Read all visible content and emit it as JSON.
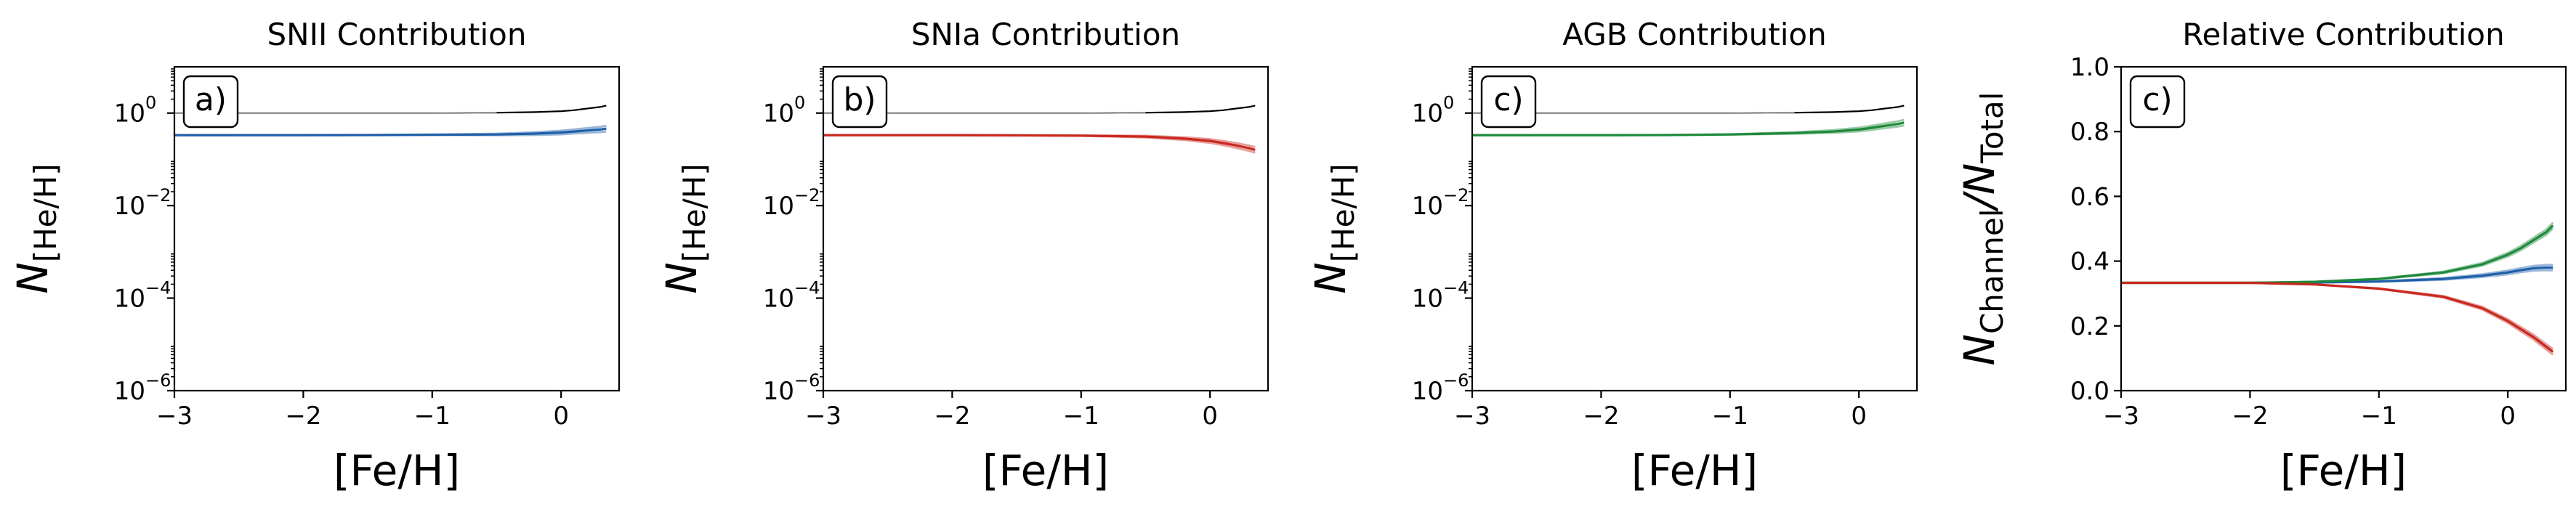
{
  "chart_data": [
    {
      "type": "line",
      "title": "SNII Contribution",
      "panel_label": "a)",
      "xlabel": "[Fe/H]",
      "ylabel": "N[He/H]",
      "yscale": "log",
      "xlim": [
        -3,
        0.45
      ],
      "ylim": [
        1e-06,
        10
      ],
      "xticks": [
        -3,
        -2,
        -1,
        0
      ],
      "xtick_labels": [
        "−3",
        "−2",
        "−1",
        "0"
      ],
      "yticks": [
        1e-06,
        0.0001,
        0.01,
        1
      ],
      "ytick_labels": [
        "10",
        "10",
        "10",
        "10"
      ],
      "ytick_exponents": [
        "−6",
        "−4",
        "−2",
        "0"
      ],
      "series": [
        {
          "color": "#000000",
          "x": [
            -3.0,
            -2.0,
            -1.0,
            -0.5,
            -0.2,
            0.0,
            0.1,
            0.2,
            0.3,
            0.35
          ],
          "y": [
            1.0,
            1.0,
            1.0,
            1.02,
            1.05,
            1.1,
            1.15,
            1.25,
            1.35,
            1.45
          ]
        },
        {
          "color": "#1f5fa8",
          "x": [
            -3.0,
            -2.0,
            -1.5,
            -1.0,
            -0.5,
            -0.2,
            0.0,
            0.1,
            0.2,
            0.3,
            0.35
          ],
          "y": [
            0.333,
            0.333,
            0.335,
            0.34,
            0.345,
            0.36,
            0.38,
            0.4,
            0.42,
            0.44,
            0.46
          ]
        }
      ]
    },
    {
      "type": "line",
      "title": "SNIa Contribution",
      "panel_label": "b)",
      "xlabel": "[Fe/H]",
      "ylabel": "N[He/H]",
      "yscale": "log",
      "xlim": [
        -3,
        0.45
      ],
      "ylim": [
        1e-06,
        10
      ],
      "xticks": [
        -3,
        -2,
        -1,
        0
      ],
      "xtick_labels": [
        "−3",
        "−2",
        "−1",
        "0"
      ],
      "yticks": [
        1e-06,
        0.0001,
        0.01,
        1
      ],
      "ytick_labels": [
        "10",
        "10",
        "10",
        "10"
      ],
      "ytick_exponents": [
        "−6",
        "−4",
        "−2",
        "0"
      ],
      "series": [
        {
          "color": "#000000",
          "x": [
            -3.0,
            -2.0,
            -1.0,
            -0.5,
            -0.2,
            0.0,
            0.1,
            0.2,
            0.3,
            0.35
          ],
          "y": [
            1.0,
            1.0,
            1.0,
            1.02,
            1.05,
            1.1,
            1.15,
            1.25,
            1.35,
            1.45
          ]
        },
        {
          "color": "#c8281e",
          "x": [
            -3.0,
            -2.0,
            -1.5,
            -1.0,
            -0.5,
            -0.2,
            0.0,
            0.1,
            0.2,
            0.3,
            0.35
          ],
          "y": [
            0.333,
            0.333,
            0.33,
            0.325,
            0.31,
            0.28,
            0.25,
            0.225,
            0.2,
            0.175,
            0.16
          ]
        }
      ]
    },
    {
      "type": "line",
      "title": "AGB Contribution",
      "panel_label": "c)",
      "xlabel": "[Fe/H]",
      "ylabel": "N[He/H]",
      "yscale": "log",
      "xlim": [
        -3,
        0.45
      ],
      "ylim": [
        1e-06,
        10
      ],
      "xticks": [
        -3,
        -2,
        -1,
        0
      ],
      "xtick_labels": [
        "−3",
        "−2",
        "−1",
        "0"
      ],
      "yticks": [
        1e-06,
        0.0001,
        0.01,
        1
      ],
      "ytick_labels": [
        "10",
        "10",
        "10",
        "10"
      ],
      "ytick_exponents": [
        "−6",
        "−4",
        "−2",
        "0"
      ],
      "series": [
        {
          "color": "#000000",
          "x": [
            -3.0,
            -2.0,
            -1.0,
            -0.5,
            -0.2,
            0.0,
            0.1,
            0.2,
            0.3,
            0.35
          ],
          "y": [
            1.0,
            1.0,
            1.0,
            1.02,
            1.05,
            1.1,
            1.15,
            1.25,
            1.35,
            1.45
          ]
        },
        {
          "color": "#1e8a3c",
          "x": [
            -3.0,
            -2.0,
            -1.5,
            -1.0,
            -0.5,
            -0.2,
            0.0,
            0.1,
            0.2,
            0.3,
            0.35
          ],
          "y": [
            0.333,
            0.333,
            0.335,
            0.345,
            0.37,
            0.4,
            0.44,
            0.48,
            0.53,
            0.58,
            0.62
          ]
        }
      ]
    },
    {
      "type": "line",
      "title": "Relative Contribution",
      "panel_label": "c)",
      "xlabel": "[Fe/H]",
      "ylabel": "NChannel/NTotal",
      "yscale": "linear",
      "xlim": [
        -3,
        0.45
      ],
      "ylim": [
        0,
        1
      ],
      "xticks": [
        -3,
        -2,
        -1,
        0
      ],
      "xtick_labels": [
        "−3",
        "−2",
        "−1",
        "0"
      ],
      "yticks": [
        0,
        0.2,
        0.4,
        0.6,
        0.8,
        1.0
      ],
      "ytick_labels": [
        "0.0",
        "0.2",
        "0.4",
        "0.6",
        "0.8",
        "1.0"
      ],
      "series": [
        {
          "color": "#1f5fa8",
          "x": [
            -3.0,
            -2.0,
            -1.5,
            -1.0,
            -0.5,
            -0.2,
            0.0,
            0.1,
            0.2,
            0.3,
            0.35
          ],
          "y": [
            0.333,
            0.333,
            0.334,
            0.337,
            0.345,
            0.355,
            0.365,
            0.372,
            0.378,
            0.38,
            0.38
          ]
        },
        {
          "color": "#1e8a3c",
          "x": [
            -3.0,
            -2.0,
            -1.5,
            -1.0,
            -0.5,
            -0.2,
            0.0,
            0.1,
            0.2,
            0.3,
            0.35
          ],
          "y": [
            0.333,
            0.333,
            0.336,
            0.345,
            0.365,
            0.39,
            0.42,
            0.44,
            0.465,
            0.49,
            0.51
          ]
        },
        {
          "color": "#c8281e",
          "x": [
            -3.0,
            -2.0,
            -1.5,
            -1.0,
            -0.5,
            -0.2,
            0.0,
            0.1,
            0.2,
            0.3,
            0.35
          ],
          "y": [
            0.333,
            0.333,
            0.328,
            0.315,
            0.29,
            0.255,
            0.215,
            0.19,
            0.165,
            0.135,
            0.12
          ]
        }
      ]
    }
  ]
}
